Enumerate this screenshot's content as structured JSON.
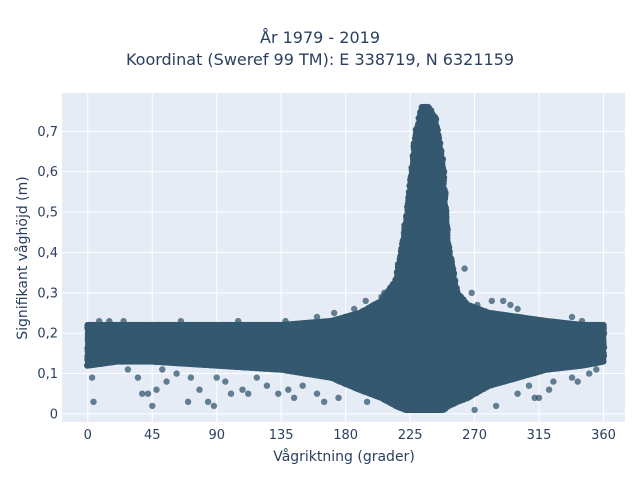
{
  "chart_data": {
    "type": "scatter",
    "title": "År 1979 - 2019",
    "subtitle": "Koordinat (Sweref 99 TM): E 338719, N 6321159",
    "xlabel": "Vågriktning (grader)",
    "ylabel": "Signifikant våghöjd (m)",
    "xlim": [
      -18,
      375
    ],
    "ylim": [
      -0.02,
      0.795
    ],
    "x_ticks": [
      0,
      45,
      90,
      135,
      180,
      225,
      270,
      315,
      360
    ],
    "x_tick_labels": [
      "0",
      "45",
      "90",
      "135",
      "180",
      "225",
      "270",
      "315",
      "360"
    ],
    "y_ticks": [
      0,
      0.1,
      0.2,
      0.3,
      0.4,
      0.5,
      0.6,
      0.7
    ],
    "y_tick_labels": [
      "0",
      "0,1",
      "0,2",
      "0,3",
      "0,4",
      "0,5",
      "0,6",
      "0,7"
    ],
    "grid": true,
    "marker_color": "#34586f",
    "background_color": "#e5ecf6",
    "band": {
      "x": [
        0,
        20,
        45,
        90,
        135,
        170,
        190,
        205,
        215,
        222,
        228,
        233,
        238,
        243,
        248,
        252,
        258,
        265,
        280,
        300,
        320,
        345,
        360
      ],
      "y_min": [
        0.12,
        0.13,
        0.13,
        0.12,
        0.11,
        0.09,
        0.06,
        0.04,
        0.02,
        0.01,
        0.01,
        0.01,
        0.01,
        0.01,
        0.01,
        0.02,
        0.03,
        0.04,
        0.07,
        0.09,
        0.11,
        0.12,
        0.13
      ],
      "y_max": [
        0.22,
        0.22,
        0.22,
        0.22,
        0.22,
        0.23,
        0.25,
        0.28,
        0.33,
        0.48,
        0.68,
        0.76,
        0.76,
        0.73,
        0.62,
        0.42,
        0.3,
        0.27,
        0.25,
        0.24,
        0.23,
        0.22,
        0.22
      ]
    },
    "outliers": [
      {
        "x": 4,
        "y": 0.03
      },
      {
        "x": 3,
        "y": 0.09
      },
      {
        "x": 28,
        "y": 0.11
      },
      {
        "x": 35,
        "y": 0.09
      },
      {
        "x": 38,
        "y": 0.05
      },
      {
        "x": 42,
        "y": 0.05
      },
      {
        "x": 48,
        "y": 0.06
      },
      {
        "x": 45,
        "y": 0.02
      },
      {
        "x": 52,
        "y": 0.11
      },
      {
        "x": 55,
        "y": 0.08
      },
      {
        "x": 62,
        "y": 0.1
      },
      {
        "x": 70,
        "y": 0.03
      },
      {
        "x": 72,
        "y": 0.09
      },
      {
        "x": 78,
        "y": 0.06
      },
      {
        "x": 84,
        "y": 0.03
      },
      {
        "x": 88,
        "y": 0.02
      },
      {
        "x": 90,
        "y": 0.09
      },
      {
        "x": 96,
        "y": 0.08
      },
      {
        "x": 100,
        "y": 0.05
      },
      {
        "x": 108,
        "y": 0.06
      },
      {
        "x": 112,
        "y": 0.05
      },
      {
        "x": 118,
        "y": 0.09
      },
      {
        "x": 125,
        "y": 0.07
      },
      {
        "x": 133,
        "y": 0.05
      },
      {
        "x": 140,
        "y": 0.06
      },
      {
        "x": 144,
        "y": 0.04
      },
      {
        "x": 150,
        "y": 0.07
      },
      {
        "x": 160,
        "y": 0.05
      },
      {
        "x": 165,
        "y": 0.03
      },
      {
        "x": 175,
        "y": 0.04
      },
      {
        "x": 195,
        "y": 0.03
      },
      {
        "x": 270,
        "y": 0.01
      },
      {
        "x": 285,
        "y": 0.02
      },
      {
        "x": 300,
        "y": 0.05
      },
      {
        "x": 315,
        "y": 0.04
      },
      {
        "x": 322,
        "y": 0.06
      },
      {
        "x": 325,
        "y": 0.08
      },
      {
        "x": 338,
        "y": 0.09
      },
      {
        "x": 342,
        "y": 0.08
      },
      {
        "x": 350,
        "y": 0.1
      },
      {
        "x": 355,
        "y": 0.11
      },
      {
        "x": 312,
        "y": 0.04
      },
      {
        "x": 308,
        "y": 0.07
      },
      {
        "x": 205,
        "y": 0.29
      },
      {
        "x": 207,
        "y": 0.3
      },
      {
        "x": 213,
        "y": 0.32
      },
      {
        "x": 218,
        "y": 0.33
      },
      {
        "x": 263,
        "y": 0.36
      },
      {
        "x": 268,
        "y": 0.3
      },
      {
        "x": 272,
        "y": 0.27
      },
      {
        "x": 282,
        "y": 0.28
      },
      {
        "x": 290,
        "y": 0.28
      },
      {
        "x": 295,
        "y": 0.27
      },
      {
        "x": 300,
        "y": 0.26
      },
      {
        "x": 338,
        "y": 0.24
      },
      {
        "x": 345,
        "y": 0.23
      },
      {
        "x": 8,
        "y": 0.23
      },
      {
        "x": 15,
        "y": 0.23
      },
      {
        "x": 25,
        "y": 0.23
      },
      {
        "x": 65,
        "y": 0.23
      },
      {
        "x": 105,
        "y": 0.23
      },
      {
        "x": 138,
        "y": 0.23
      },
      {
        "x": 160,
        "y": 0.24
      },
      {
        "x": 172,
        "y": 0.25
      },
      {
        "x": 186,
        "y": 0.26
      },
      {
        "x": 194,
        "y": 0.28
      }
    ]
  }
}
